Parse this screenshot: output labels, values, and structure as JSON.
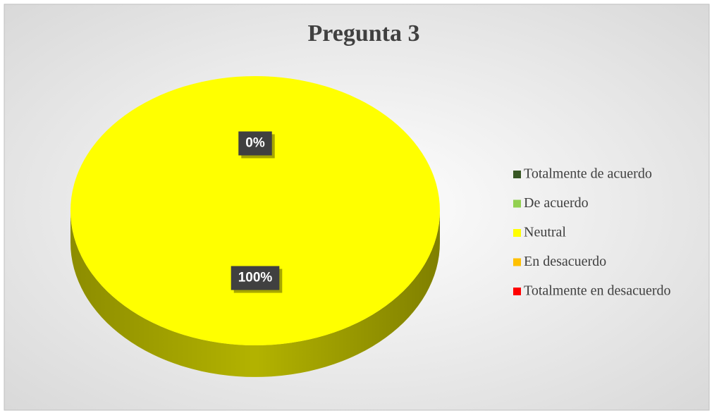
{
  "chart_data": {
    "type": "pie",
    "title": "Pregunta 3",
    "categories": [
      "Totalmente de acuerdo",
      "De acuerdo",
      "Neutral",
      "En desacuerdo",
      "Totalmente en desacuerdo"
    ],
    "values": [
      0,
      0,
      100,
      0,
      0
    ],
    "value_labels": [
      "0%",
      null,
      "100%",
      null,
      null
    ],
    "colors": [
      "#375623",
      "#92d050",
      "#ffff00",
      "#ffc000",
      "#ff0000"
    ],
    "legend": "right",
    "three_d": true
  }
}
